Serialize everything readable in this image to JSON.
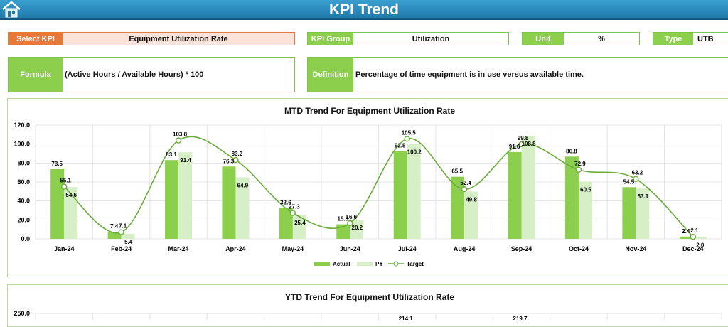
{
  "header": {
    "title": "KPI Trend",
    "home_icon": "home-icon"
  },
  "select_kpi": {
    "label": "Select KPI",
    "value": "Equipment Utilization Rate"
  },
  "kpi_group": {
    "label": "KPI Group",
    "value": "Utilization"
  },
  "unit": {
    "label": "Unit",
    "value": "%"
  },
  "type": {
    "label": "Type",
    "value": "UTB"
  },
  "formula": {
    "label": "Formula",
    "value": "(Active Hours / Available Hours) * 100"
  },
  "definition": {
    "label": "Definition",
    "value": "Percentage of time equipment is in use versus available time."
  },
  "colors": {
    "actual": "#8ccf4d",
    "py": "#d6efc6",
    "target": "#6aaa3a",
    "header": "#2a8cbf",
    "select": "#e8773a"
  },
  "chart_data": [
    {
      "type": "bar+line",
      "title": "MTD Trend For Equipment Utilization Rate",
      "categories": [
        "Jan-24",
        "Feb-24",
        "Mar-24",
        "Apr-24",
        "May-24",
        "Jun-24",
        "Jul-24",
        "Aug-24",
        "Sep-24",
        "Oct-24",
        "Nov-24",
        "Dec-24"
      ],
      "series": [
        {
          "name": "Actual",
          "type": "bar",
          "values": [
            73.5,
            7.4,
            83.1,
            76.3,
            32.6,
            15.3,
            92.5,
            65.5,
            91.6,
            86.8,
            54.5,
            2.4
          ]
        },
        {
          "name": "PY",
          "type": "bar",
          "values": [
            54.6,
            5.4,
            91.4,
            64.9,
            25.4,
            20.2,
            100.2,
            49.8,
            108.8,
            60.5,
            53.1,
            2.0
          ]
        },
        {
          "name": "Target",
          "type": "line",
          "values": [
            55.1,
            7.1,
            103.8,
            83.2,
            27.3,
            16.6,
            105.5,
            52.4,
            99.8,
            72.9,
            63.2,
            2.1
          ]
        }
      ],
      "ylim": [
        0,
        120
      ],
      "yticks": [
        "0.0",
        "20.0",
        "40.0",
        "60.0",
        "80.0",
        "100.0",
        "120.0"
      ],
      "grid": true,
      "legend": "bottom"
    },
    {
      "type": "bar+line",
      "title": "YTD Trend For Equipment Utilization Rate",
      "yticks": [
        "250.0"
      ],
      "ylim_top": 250,
      "visible_labels": [
        {
          "category": "Jul-24",
          "value": "214.1"
        },
        {
          "category": "Sep-24",
          "value": "219.7"
        }
      ]
    }
  ]
}
